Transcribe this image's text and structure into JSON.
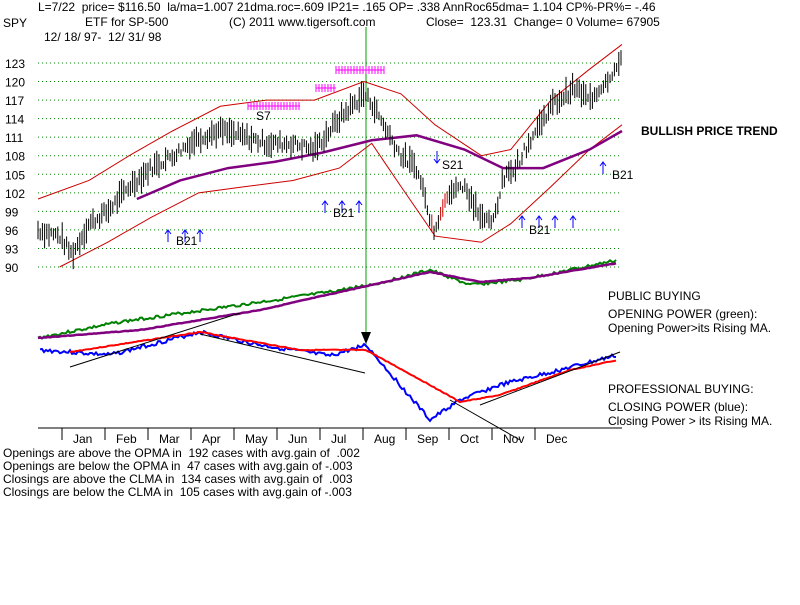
{
  "header": {
    "ticker": "SPY",
    "stats_line": "L=7/22  price= $116.50  la/ma=1.007 21dma.roc=.609 IP21= .165 OP= .338 AnnRoc65dma= 1.104 CP%-PR%= -.46",
    "etf_name": "ETF for SP-500",
    "copyright": "(C) 2011 www.tigersoft.com",
    "close_line": "Close=  123.31  Change= 0 Volume= 67905",
    "date_range": "12/ 18/ 97-  12/ 31/ 98"
  },
  "annotations": {
    "bullish_trend": "BULLISH PRICE TREND",
    "public_buying": "PUBLIC BUYING",
    "opening_power_title": "OPENING POWER (green):",
    "opening_power_desc": "Opening Power>its Rising MA.",
    "professional_buying": "PROFESSIONAL BUYING:",
    "closing_power_title": "CLOSING POWER (blue):",
    "closing_power_desc": "Closing Power > its Rising MA."
  },
  "signals": {
    "s7": "S7",
    "s21": "S21",
    "b21": "B21"
  },
  "stats_lines": [
    "Openings are above the OPMA in  192 cases with avg.gain of  .002",
    "Openings are below the OPMA in  47 cases with avg.gain of -.003",
    "Closings are above the CLMA in  134 cases with avg.gain of  .003",
    "Closings are below the CLMA in  105 cases with avg.gain of -.003"
  ],
  "colors": {
    "price_bars": "#000000",
    "bands": "#cc0000",
    "ma_purple": "#800080",
    "opening_power": "#008000",
    "closing_power": "#0000ff",
    "closing_ma": "#ff0000",
    "sell_marks": "#ff00ff",
    "buy_arrows": "#0000ff",
    "gridline": "#008000",
    "vertical_marker": "#00a000"
  },
  "chart_data": {
    "type": "line",
    "title": "SPY ETF for SP-500",
    "y_ticks": [
      123,
      120,
      117,
      114,
      111,
      108,
      105,
      102,
      99,
      96,
      93,
      90
    ],
    "ylim": [
      90,
      126
    ],
    "x_months": [
      "Jan",
      "Feb",
      "Mar",
      "Apr",
      "May",
      "Jun",
      "Jul",
      "Aug",
      "Sep",
      "Oct",
      "Nov",
      "Dec"
    ],
    "grid": "horizontal dotted",
    "series": [
      {
        "name": "Price",
        "x": [
          "12/18",
          "1/1",
          "1/9",
          "1/20",
          "2/1",
          "2/15",
          "3/1",
          "3/15",
          "4/1",
          "4/15",
          "5/1",
          "5/15",
          "6/1",
          "6/15",
          "7/1",
          "7/17",
          "7/22",
          "8/1",
          "8/10",
          "8/20",
          "8/31",
          "9/10",
          "9/20",
          "10/1",
          "10/8",
          "10/15",
          "10/25",
          "11/5",
          "11/15",
          "11/30",
          "12/10",
          "12/20",
          "12/31"
        ],
        "values": [
          96,
          95,
          92,
          97,
          99,
          103,
          106,
          108,
          111,
          112,
          111,
          110,
          110,
          109,
          114,
          118,
          116.5,
          112,
          108,
          106,
          96,
          102,
          103,
          98,
          97,
          104,
          107,
          112,
          116,
          119,
          117,
          120,
          123.3
        ]
      },
      {
        "name": "Upper band",
        "x": [
          "12/18",
          "1/20",
          "2/15",
          "3/15",
          "4/15",
          "5/15",
          "6/15",
          "7/17",
          "8/10",
          "9/1",
          "10/1",
          "10/20",
          "11/15",
          "12/10",
          "12/31"
        ],
        "values": [
          101,
          104,
          108,
          112,
          116,
          117,
          117,
          120,
          118,
          113,
          108,
          109,
          117,
          122,
          126
        ]
      },
      {
        "name": "Lower band",
        "x": [
          "1/1",
          "2/1",
          "3/1",
          "4/1",
          "5/1",
          "6/1",
          "7/1",
          "7/22",
          "8/10",
          "9/1",
          "10/1",
          "10/20",
          "11/15",
          "12/10",
          "12/31"
        ],
        "values": [
          90,
          94,
          98,
          102,
          103,
          104,
          106,
          110,
          103,
          95,
          94,
          97,
          103,
          109,
          113
        ]
      },
      {
        "name": "Moving average",
        "x": [
          "2/20",
          "3/20",
          "4/20",
          "5/20",
          "6/20",
          "7/22",
          "8/20",
          "9/20",
          "10/15",
          "11/10",
          "12/10",
          "12/31"
        ],
        "values": [
          101,
          104,
          106,
          107,
          108.5,
          110.5,
          111.3,
          109,
          106,
          106,
          109,
          112
        ]
      }
    ],
    "signal_labels": [
      "S7",
      "S21",
      "B21"
    ]
  }
}
